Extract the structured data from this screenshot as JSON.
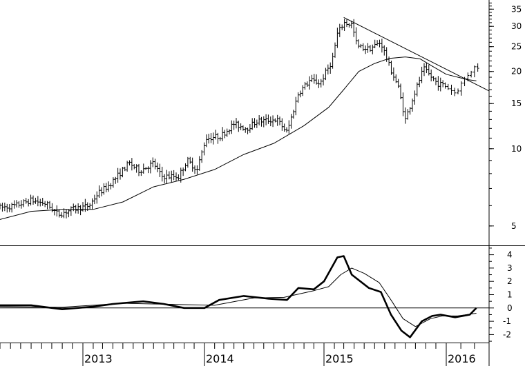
{
  "colors": {
    "background": "#ffffff",
    "ink": "#000000"
  },
  "chart_data": [
    {
      "type": "bar",
      "subtype": "ohlc-weekly",
      "y_scale": "log",
      "ylim": [
        4.2,
        38
      ],
      "yticks": [
        "5",
        "10",
        "15",
        "20",
        "25",
        "30",
        "35"
      ],
      "ytick_values": [
        5,
        10,
        15,
        20,
        25,
        30,
        35
      ],
      "x_range": [
        "2012-05-01",
        "2016-04-01"
      ],
      "grid": false,
      "anchors": [
        [
          "2012-05-01",
          5.9
        ],
        [
          "2012-06-15",
          6.0
        ],
        [
          "2012-08-01",
          6.3
        ],
        [
          "2012-09-15",
          6.1
        ],
        [
          "2012-10-20",
          5.55
        ],
        [
          "2012-12-01",
          5.8
        ],
        [
          "2013-01-20",
          6.0
        ],
        [
          "2013-02-15",
          6.7
        ],
        [
          "2013-03-20",
          7.2
        ],
        [
          "2013-05-20",
          8.8
        ],
        [
          "2013-06-20",
          8.2
        ],
        [
          "2013-08-01",
          8.8
        ],
        [
          "2013-08-25",
          7.8
        ],
        [
          "2013-10-15",
          7.8
        ],
        [
          "2013-11-10",
          9.0
        ],
        [
          "2013-12-10",
          8.3
        ],
        [
          "2014-01-05",
          11.0
        ],
        [
          "2014-02-20",
          11.2
        ],
        [
          "2014-04-01",
          12.5
        ],
        [
          "2014-05-10",
          12.0
        ],
        [
          "2014-06-10",
          12.8
        ],
        [
          "2014-08-10",
          13.0
        ],
        [
          "2014-09-10",
          11.6
        ],
        [
          "2014-10-15",
          16.5
        ],
        [
          "2014-11-20",
          18.5
        ],
        [
          "2014-12-20",
          18.0
        ],
        [
          "2015-01-25",
          22.0
        ],
        [
          "2015-02-10",
          28.0
        ],
        [
          "2015-03-01",
          31.0
        ],
        [
          "2015-03-25",
          30.5
        ],
        [
          "2015-04-10",
          25.0
        ],
        [
          "2015-05-15",
          24.5
        ],
        [
          "2015-06-20",
          26.0
        ],
        [
          "2015-07-15",
          21.0
        ],
        [
          "2015-08-10",
          17.5
        ],
        [
          "2015-09-01",
          13.0
        ],
        [
          "2015-09-25",
          16.0
        ],
        [
          "2015-10-25",
          20.5
        ],
        [
          "2015-12-05",
          18.0
        ],
        [
          "2016-01-01",
          17.5
        ],
        [
          "2016-01-20",
          16.5
        ],
        [
          "2016-02-20",
          20.0
        ],
        [
          "2016-03-05",
          21.0
        ]
      ],
      "moving_average": [
        [
          "2012-05-01",
          5.3
        ],
        [
          "2012-08-01",
          5.7
        ],
        [
          "2012-11-01",
          5.8
        ],
        [
          "2013-02-01",
          5.8
        ],
        [
          "2013-05-01",
          6.2
        ],
        [
          "2013-08-01",
          7.1
        ],
        [
          "2013-11-01",
          7.6
        ],
        [
          "2014-02-01",
          8.3
        ],
        [
          "2014-05-01",
          9.5
        ],
        [
          "2014-08-01",
          10.5
        ],
        [
          "2014-11-01",
          12.3
        ],
        [
          "2015-01-15",
          14.5
        ],
        [
          "2015-03-01",
          17.0
        ],
        [
          "2015-04-15",
          20.0
        ],
        [
          "2015-06-01",
          21.5
        ],
        [
          "2015-07-15",
          22.5
        ],
        [
          "2015-09-01",
          22.8
        ],
        [
          "2015-10-15",
          22.4
        ],
        [
          "2015-11-20",
          21.0
        ],
        [
          "2016-01-01",
          19.5
        ],
        [
          "2016-02-15",
          18.6
        ],
        [
          "2016-03-05",
          18.4
        ]
      ],
      "trendline": [
        [
          "2015-03-01",
          32.5
        ],
        [
          "2016-04-01",
          16.8
        ]
      ]
    },
    {
      "type": "line",
      "subtype": "oscillator",
      "ylim": [
        -2.6,
        4.6
      ],
      "yticks": [
        "-2",
        "-1",
        "0",
        "1",
        "2",
        "3",
        "4"
      ],
      "ytick_values": [
        -2,
        -1,
        0,
        1,
        2,
        3,
        4
      ],
      "zero_line": true,
      "series": [
        {
          "style": "thick",
          "x": [
            "2012-05-01",
            "2012-08-01",
            "2012-11-01",
            "2013-02-01",
            "2013-04-01",
            "2013-07-01",
            "2013-09-01",
            "2013-11-01",
            "2014-01-01",
            "2014-02-15",
            "2014-05-01",
            "2014-07-15",
            "2014-09-10",
            "2014-10-15",
            "2014-12-01",
            "2015-01-01",
            "2015-02-10",
            "2015-03-01",
            "2015-03-25",
            "2015-05-15",
            "2015-06-20",
            "2015-07-20",
            "2015-08-20",
            "2015-09-15",
            "2015-10-20",
            "2015-11-20",
            "2015-12-15",
            "2016-01-20",
            "2016-02-20",
            "2016-03-05"
          ],
          "values": [
            0.2,
            0.2,
            -0.1,
            0.1,
            0.3,
            0.5,
            0.3,
            0.0,
            0.0,
            0.6,
            0.9,
            0.7,
            0.6,
            1.5,
            1.4,
            2.0,
            3.8,
            3.9,
            2.5,
            1.5,
            1.2,
            -0.5,
            -1.7,
            -2.2,
            -1.0,
            -0.6,
            -0.5,
            -0.7,
            -0.5,
            0.0
          ]
        },
        {
          "style": "thin",
          "x": [
            "2012-05-01",
            "2012-11-01",
            "2013-05-01",
            "2013-11-01",
            "2014-02-01",
            "2014-06-01",
            "2014-09-01",
            "2014-12-01",
            "2015-01-15",
            "2015-02-20",
            "2015-03-25",
            "2015-05-01",
            "2015-06-15",
            "2015-07-20",
            "2015-08-25",
            "2015-10-01",
            "2015-11-15",
            "2015-12-20",
            "2016-01-25",
            "2016-03-05"
          ],
          "values": [
            0.1,
            0.05,
            0.35,
            0.25,
            0.2,
            0.75,
            0.8,
            1.3,
            1.6,
            2.5,
            3.0,
            2.6,
            1.9,
            0.6,
            -0.8,
            -1.4,
            -0.8,
            -0.6,
            -0.6,
            -0.4
          ]
        }
      ]
    }
  ],
  "x_axis": {
    "labels": [
      "2013",
      "2014",
      "2015",
      "2016"
    ],
    "label_dates": [
      "2013-01-01",
      "2014-01-01",
      "2015-01-01",
      "2016-01-01"
    ]
  }
}
